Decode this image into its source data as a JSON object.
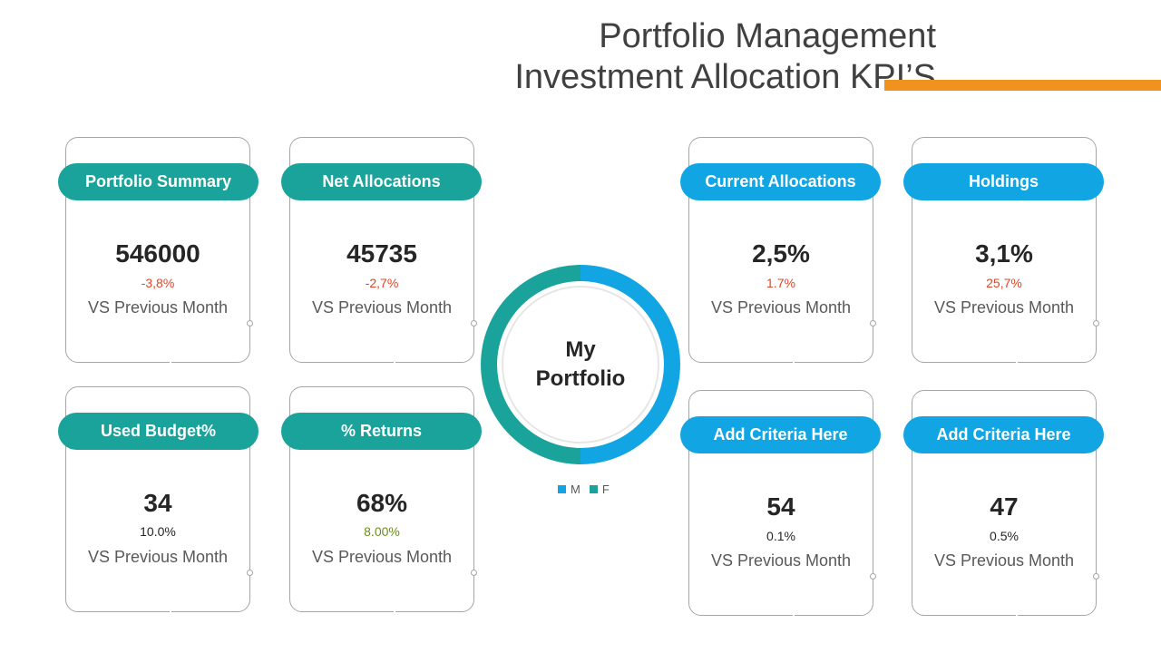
{
  "title": {
    "line1": "Portfolio Management",
    "line2": "Investment Allocation KPI’S"
  },
  "colors": {
    "teal": "#1aa39a",
    "blue": "#12a5e3",
    "orange": "#f0931e",
    "negative": "#e0452a",
    "positive": "#6a8f1e",
    "neutral": "#262626"
  },
  "cards": {
    "portfolio_summary": {
      "label": "Portfolio  Summary",
      "value": "546000",
      "change": "-3,8%",
      "note": "VS Previous Month"
    },
    "net_allocations": {
      "label": "Net Allocations",
      "value": "45735",
      "change": "-2,7%",
      "note": "VS Previous Month"
    },
    "used_budget": {
      "label": "Used Budget%",
      "value": "34",
      "change": "10.0%",
      "note": "VS Previous Month"
    },
    "returns": {
      "label": "% Returns",
      "value": "68%",
      "change": "8.00%",
      "note": "VS Previous Month"
    },
    "current_allocations": {
      "label": "Current  Allocations",
      "value": "2,5%",
      "change": "1.7%",
      "note": "VS Previous Month"
    },
    "holdings": {
      "label": "Holdings",
      "value": "3,1%",
      "change": "25,7%",
      "note": "VS Previous Month"
    },
    "criteria_1": {
      "label": "Add Criteria Here",
      "value": "54",
      "change": "0.1%",
      "note": "VS Previous Month"
    },
    "criteria_2": {
      "label": "Add Criteria Here",
      "value": "47",
      "change": "0.5%",
      "note": "VS Previous Month"
    }
  },
  "donut": {
    "center_line1": "My",
    "center_line2": "Portfolio",
    "segments": [
      {
        "name": "M",
        "value": 50,
        "color": "#12a5e3"
      },
      {
        "name": "F",
        "value": 50,
        "color": "#1aa39a"
      }
    ]
  }
}
